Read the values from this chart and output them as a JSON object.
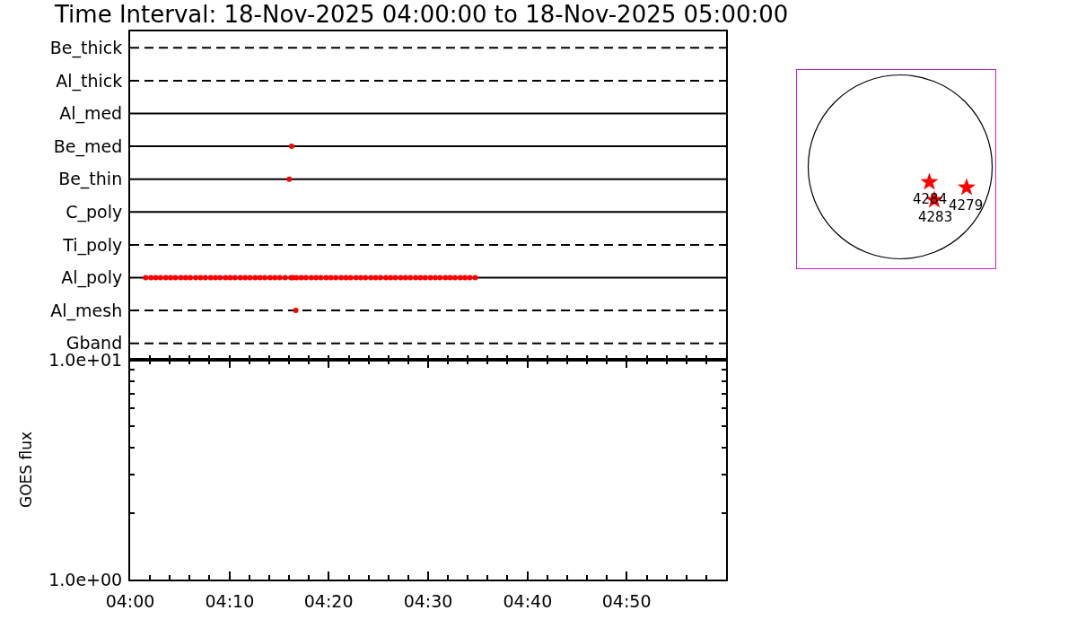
{
  "chart_data": [
    {
      "type": "scatter",
      "title": "Time Interval: 18-Nov-2025 04:00:00 to 18-Nov-2025 05:00:00",
      "orientation": "horizontal",
      "categories": [
        "Be_thick",
        "Al_thick",
        "Al_med",
        "Be_med",
        "Be_thin",
        "C_poly",
        "Ti_poly",
        "Al_poly",
        "Al_mesh",
        "Gband"
      ],
      "xlim": [
        4,
        5
      ],
      "xticks": [
        {
          "value": 4.033,
          "label": null
        },
        {
          "value": 4.067,
          "label": null
        },
        {
          "value": 4.1,
          "label": null
        },
        {
          "value": 4.133,
          "label": null
        },
        {
          "value": 4.167,
          "label": null
        },
        {
          "value": 4.2,
          "label": null
        },
        {
          "value": 4.233,
          "label": null
        },
        {
          "value": 4.267,
          "label": null
        },
        {
          "value": 4.3,
          "label": null
        },
        {
          "value": 4.333,
          "label": null
        },
        {
          "value": 4.367,
          "label": null
        },
        {
          "value": 4.4,
          "label": null
        },
        {
          "value": 4.433,
          "label": null
        },
        {
          "value": 4.467,
          "label": null
        },
        {
          "value": 4.5,
          "label": null
        },
        {
          "value": 4.533,
          "label": null
        },
        {
          "value": 4.567,
          "label": null
        },
        {
          "value": 4.6,
          "label": null
        },
        {
          "value": 4.633,
          "label": null
        },
        {
          "value": 4.667,
          "label": null
        },
        {
          "value": 4.7,
          "label": null
        },
        {
          "value": 4.733,
          "label": null
        },
        {
          "value": 4.767,
          "label": null
        },
        {
          "value": 4.8,
          "label": null
        },
        {
          "value": 4.833,
          "label": null
        },
        {
          "value": 4.867,
          "label": null
        },
        {
          "value": 4.9,
          "label": null
        },
        {
          "value": 4.933,
          "label": null
        },
        {
          "value": 4.967,
          "label": null
        }
      ],
      "tick_labels": "y",
      "marker": "circle",
      "ref_lines": [
        {
          "axis": "y",
          "value": "Be_thick",
          "line_style": "dashed",
          "color": "#000000"
        },
        {
          "axis": "y",
          "value": "Al_thick",
          "line_style": "dashed",
          "color": "#000000"
        },
        {
          "axis": "y",
          "value": "Al_med",
          "line_style": "solid",
          "color": "#000000"
        },
        {
          "axis": "y",
          "value": "Be_med",
          "line_style": "solid",
          "color": "#000000"
        },
        {
          "axis": "y",
          "value": "Be_thin",
          "line_style": "solid",
          "color": "#000000"
        },
        {
          "axis": "y",
          "value": "C_poly",
          "line_style": "solid",
          "color": "#000000"
        },
        {
          "axis": "y",
          "value": "Ti_poly",
          "line_style": "dashed",
          "color": "#000000"
        },
        {
          "axis": "y",
          "value": "Al_poly",
          "line_style": "solid",
          "color": "#000000"
        },
        {
          "axis": "y",
          "value": "Al_mesh",
          "line_style": "dashed",
          "color": "#000000"
        },
        {
          "axis": "y",
          "value": "Gband",
          "line_style": "dashed",
          "color": "#000000"
        }
      ],
      "series": [
        {
          "color": "#ff0000",
          "x": [
            "Al_poly",
            "Al_poly",
            "Al_poly",
            "Al_poly",
            "Al_poly",
            "Al_poly",
            "Al_poly",
            "Al_poly",
            "Al_poly",
            "Al_poly",
            "Al_poly",
            "Al_poly",
            "Al_poly",
            "Al_poly",
            "Al_poly",
            "Al_poly",
            "Al_poly",
            "Al_poly",
            "Al_poly",
            "Al_poly",
            "Al_poly",
            "Al_poly",
            "Al_poly",
            "Al_poly",
            "Al_poly",
            "Al_poly",
            "Al_poly",
            "Al_poly",
            "Al_poly",
            "Al_poly",
            "Al_poly",
            "Al_poly",
            "Al_poly",
            "Al_poly",
            "Al_poly",
            "Al_poly",
            "Al_poly",
            "Al_poly",
            "Al_poly",
            "Al_poly",
            "Al_poly",
            "Al_poly",
            "Al_poly",
            "Al_poly",
            "Al_poly",
            "Al_poly",
            "Al_poly",
            "Al_poly",
            "Al_poly",
            "Al_poly",
            "Al_poly",
            "Al_poly",
            "Al_poly",
            "Al_poly",
            "Al_poly",
            "Al_poly",
            "Al_poly",
            "Al_poly",
            "Al_poly",
            "Al_poly",
            "Al_poly",
            "Al_poly",
            "Al_poly",
            "Al_poly",
            "Al_poly",
            "Al_poly",
            "Al_poly",
            "Al_poly"
          ],
          "values": [
            4.026,
            4.035,
            4.043,
            4.051,
            4.06,
            4.068,
            4.076,
            4.085,
            4.093,
            4.101,
            4.11,
            4.118,
            4.126,
            4.135,
            4.143,
            4.151,
            4.16,
            4.168,
            4.176,
            4.185,
            4.193,
            4.201,
            4.21,
            4.218,
            4.226,
            4.235,
            4.243,
            4.251,
            4.26,
            4.27,
            4.273,
            4.279,
            4.287,
            4.295,
            4.304,
            4.312,
            4.32,
            4.329,
            4.337,
            4.345,
            4.354,
            4.362,
            4.37,
            4.379,
            4.387,
            4.395,
            4.404,
            4.412,
            4.42,
            4.429,
            4.437,
            4.445,
            4.454,
            4.462,
            4.47,
            4.479,
            4.487,
            4.495,
            4.504,
            4.512,
            4.52,
            4.529,
            4.537,
            4.545,
            4.554,
            4.562,
            4.57,
            4.579
          ]
        },
        {
          "color": "#ff0000",
          "x": [
            "Be_thin"
          ],
          "values": [
            4.267
          ]
        },
        {
          "color": "#ff0000",
          "x": [
            "Be_med"
          ],
          "values": [
            4.271
          ]
        },
        {
          "color": "#ff0000",
          "x": [
            "Al_mesh"
          ],
          "values": [
            4.278
          ]
        }
      ]
    },
    {
      "type": "line",
      "ylabel": "GOES flux",
      "xlim": [
        4,
        5
      ],
      "xticks": [
        {
          "value": 4,
          "label": "04:00"
        },
        {
          "value": 4.033,
          "label": null
        },
        {
          "value": 4.067,
          "label": null
        },
        {
          "value": 4.1,
          "label": null
        },
        {
          "value": 4.133,
          "label": null
        },
        {
          "value": 4.167,
          "label": "04:10"
        },
        {
          "value": 4.2,
          "label": null
        },
        {
          "value": 4.233,
          "label": null
        },
        {
          "value": 4.267,
          "label": null
        },
        {
          "value": 4.3,
          "label": null
        },
        {
          "value": 4.333,
          "label": "04:20"
        },
        {
          "value": 4.367,
          "label": null
        },
        {
          "value": 4.4,
          "label": null
        },
        {
          "value": 4.433,
          "label": null
        },
        {
          "value": 4.467,
          "label": null
        },
        {
          "value": 4.5,
          "label": "04:30"
        },
        {
          "value": 4.533,
          "label": null
        },
        {
          "value": 4.567,
          "label": null
        },
        {
          "value": 4.6,
          "label": null
        },
        {
          "value": 4.633,
          "label": null
        },
        {
          "value": 4.667,
          "label": "04:40"
        },
        {
          "value": 4.7,
          "label": null
        },
        {
          "value": 4.733,
          "label": null
        },
        {
          "value": 4.767,
          "label": null
        },
        {
          "value": 4.8,
          "label": null
        },
        {
          "value": 4.833,
          "label": "04:50"
        },
        {
          "value": 4.867,
          "label": null
        },
        {
          "value": 4.9,
          "label": null
        },
        {
          "value": 4.933,
          "label": null
        },
        {
          "value": 4.967,
          "label": null
        }
      ],
      "ylim": [
        1,
        10
      ],
      "yticks": [
        {
          "value": 1,
          "label": "1.0e+00"
        },
        {
          "value": 2,
          "label": null
        },
        {
          "value": 3,
          "label": null
        },
        {
          "value": 4,
          "label": null
        },
        {
          "value": 5,
          "label": null
        },
        {
          "value": 6,
          "label": null
        },
        {
          "value": 7,
          "label": null
        },
        {
          "value": 8,
          "label": null
        },
        {
          "value": 9,
          "label": null
        },
        {
          "value": 10,
          "label": "1.0e+01"
        }
      ],
      "log": "y"
    },
    {
      "type": "other",
      "annotations": [
        "4284",
        "4283",
        "4279"
      ]
    }
  ]
}
